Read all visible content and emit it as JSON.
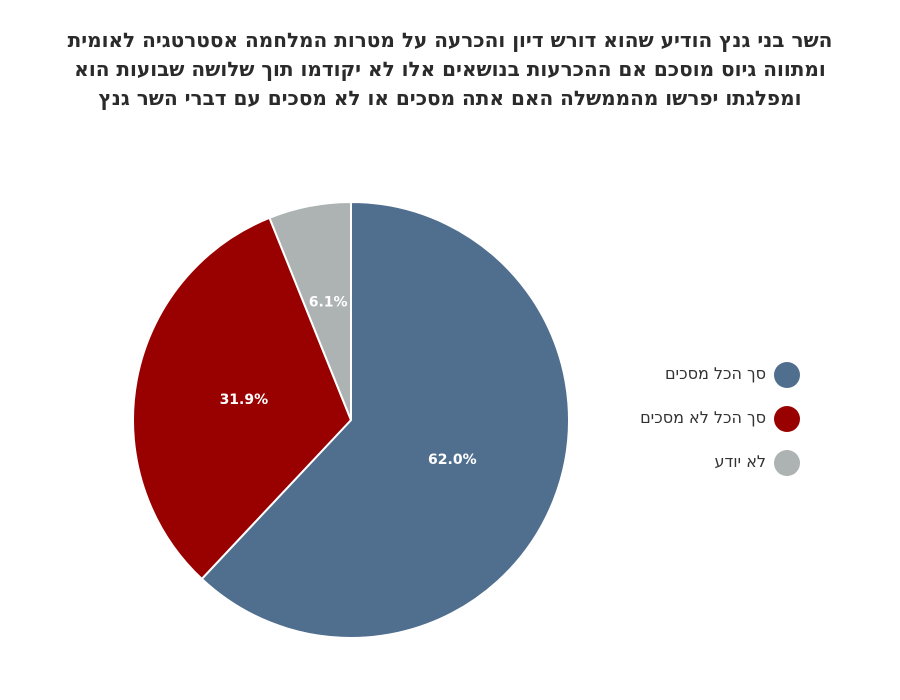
{
  "chart_data": {
    "type": "pie",
    "title_lines": [
      "השר בני גנץ הודיע שהוא דורש דיון והכרעה על מטרות המלחמה אסטרטגיה לאומית",
      "ומתווה גיוס מוסכם אם ההכרעות בנושאים אלו לא יקודמו תוך שלושה שבועות הוא",
      "ומפלגתו יפרשו מהממשלה האם אתה מסכים או לא מסכים עם דברי השר גנץ"
    ],
    "slices": [
      {
        "label": "סך הכל מסכים",
        "value": 62.0,
        "display": "62.0%",
        "color": "#506e8e"
      },
      {
        "label": "סך הכל לא מסכים",
        "value": 31.9,
        "display": "31.9%",
        "color": "#990000"
      },
      {
        "label": "לא יודע",
        "value": 6.1,
        "display": "6.1%",
        "color": "#adb2b2"
      }
    ],
    "legend_position": "right"
  }
}
